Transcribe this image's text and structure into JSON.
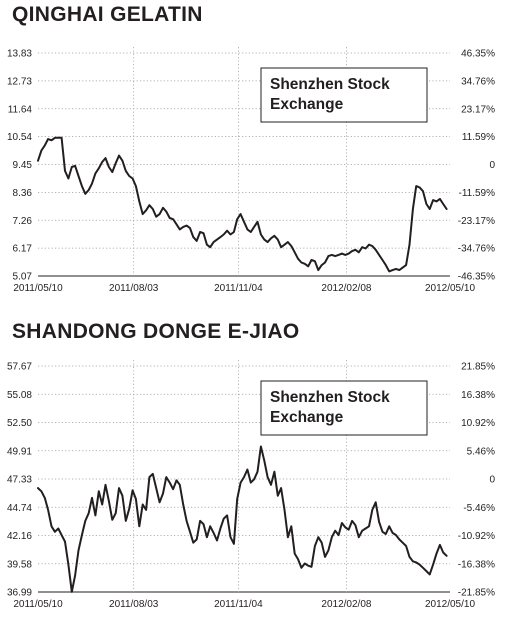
{
  "chart_data": [
    {
      "type": "line",
      "title": "QINGHAI GELATIN",
      "annotation_lines": [
        "Shenzhen Stock",
        "Exchange"
      ],
      "yticks_left": [
        "13.83",
        "12.73",
        "11.64",
        "10.54",
        "9.45",
        "8.36",
        "7.26",
        "6.17",
        "5.07"
      ],
      "yticks_right": [
        "46.35%",
        "34.76%",
        "23.17%",
        "11.59%",
        "0",
        "-11.59%",
        "-23.17%",
        "-34.76%",
        "-46.35%"
      ],
      "ylim": [
        5.07,
        13.83
      ],
      "x_range": [
        "2011/05/10",
        "2012/05/10"
      ],
      "xticks": [
        {
          "label": "2011/05/10",
          "day": 0
        },
        {
          "label": "2011/08/03",
          "day": 85
        },
        {
          "label": "2011/11/04",
          "day": 178
        },
        {
          "label": "2012/02/08",
          "day": 274
        },
        {
          "label": "2012/05/10",
          "day": 366
        }
      ],
      "grid": true,
      "series": [
        {
          "x": [
            0,
            3,
            6,
            9,
            12,
            15,
            18,
            21,
            24,
            27,
            30,
            33,
            36,
            39,
            42,
            45,
            48,
            51,
            54,
            57,
            60,
            63,
            66,
            69,
            72,
            75,
            78,
            81,
            84,
            87,
            90,
            93,
            96,
            99,
            102,
            105,
            108,
            111,
            114,
            117,
            120,
            123,
            126,
            129,
            132,
            135,
            138,
            141,
            144,
            147,
            150,
            153,
            156,
            159,
            162,
            165,
            168,
            171,
            174,
            177,
            180,
            183,
            186,
            189,
            192,
            195,
            198,
            201,
            204,
            207,
            210,
            213,
            216,
            219,
            222,
            225,
            228,
            231,
            234,
            237,
            240,
            243,
            246,
            249,
            252,
            255,
            258,
            261,
            264,
            267,
            270,
            273,
            276,
            279,
            282,
            285,
            288,
            291,
            294,
            297,
            300,
            303,
            306,
            309,
            312,
            315,
            318,
            321,
            324,
            327,
            330,
            333,
            336,
            339,
            342,
            345,
            348,
            351,
            354,
            357,
            360,
            363
          ],
          "y": [
            9.6,
            10.0,
            10.2,
            10.45,
            10.4,
            10.5,
            10.5,
            10.5,
            9.2,
            8.9,
            9.35,
            9.4,
            9.0,
            8.6,
            8.3,
            8.45,
            8.7,
            9.1,
            9.3,
            9.55,
            9.7,
            9.35,
            9.15,
            9.5,
            9.8,
            9.6,
            9.2,
            9.0,
            8.9,
            8.6,
            8.0,
            7.5,
            7.65,
            7.85,
            7.7,
            7.4,
            7.5,
            7.75,
            7.6,
            7.35,
            7.3,
            7.1,
            6.9,
            7.0,
            7.05,
            6.95,
            6.6,
            6.45,
            6.8,
            6.75,
            6.3,
            6.2,
            6.4,
            6.5,
            6.6,
            6.7,
            6.85,
            6.7,
            6.8,
            7.3,
            7.5,
            7.2,
            6.9,
            6.8,
            7.0,
            7.2,
            6.7,
            6.5,
            6.4,
            6.55,
            6.65,
            6.5,
            6.2,
            6.3,
            6.4,
            6.25,
            6.0,
            5.75,
            5.6,
            5.55,
            5.45,
            5.7,
            5.65,
            5.3,
            5.5,
            5.6,
            5.85,
            5.9,
            5.85,
            5.9,
            5.95,
            5.9,
            5.95,
            6.05,
            6.1,
            6.0,
            6.2,
            6.15,
            6.3,
            6.25,
            6.1,
            5.9,
            5.7,
            5.5,
            5.25,
            5.3,
            5.35,
            5.3,
            5.4,
            5.5,
            6.3,
            7.7,
            8.6,
            8.55,
            8.4,
            7.9,
            7.7,
            8.05,
            8.0,
            8.1,
            7.9,
            7.7
          ]
        }
      ]
    },
    {
      "type": "line",
      "title": "SHANDONG DONGE E-JIAO",
      "annotation_lines": [
        "Shenzhen Stock",
        "Exchange"
      ],
      "yticks_left": [
        "57.67",
        "55.08",
        "52.50",
        "49.91",
        "47.33",
        "44.74",
        "42.16",
        "39.58",
        "36.99"
      ],
      "yticks_right": [
        "21.85%",
        "16.38%",
        "10.92%",
        "5.46%",
        "0",
        "-5.46%",
        "-10.92%",
        "-16.38%",
        "-21.85%"
      ],
      "ylim": [
        36.99,
        57.67
      ],
      "x_range": [
        "2011/05/10",
        "2012/05/10"
      ],
      "xticks": [
        {
          "label": "2011/05/10",
          "day": 0
        },
        {
          "label": "2011/08/03",
          "day": 85
        },
        {
          "label": "2011/11/04",
          "day": 178
        },
        {
          "label": "2012/02/08",
          "day": 274
        },
        {
          "label": "2012/05/10",
          "day": 366
        }
      ],
      "grid": true,
      "series": [
        {
          "x": [
            0,
            3,
            6,
            9,
            12,
            15,
            18,
            21,
            24,
            27,
            30,
            33,
            36,
            39,
            42,
            45,
            48,
            51,
            54,
            57,
            60,
            63,
            66,
            69,
            72,
            75,
            78,
            81,
            84,
            87,
            90,
            93,
            96,
            99,
            102,
            105,
            108,
            111,
            114,
            117,
            120,
            123,
            126,
            129,
            132,
            135,
            138,
            141,
            144,
            147,
            150,
            153,
            156,
            159,
            162,
            165,
            168,
            171,
            174,
            177,
            180,
            183,
            186,
            189,
            192,
            195,
            198,
            201,
            204,
            207,
            210,
            213,
            216,
            219,
            222,
            225,
            228,
            231,
            234,
            237,
            240,
            243,
            246,
            249,
            252,
            255,
            258,
            261,
            264,
            267,
            270,
            273,
            276,
            279,
            282,
            285,
            288,
            291,
            294,
            297,
            300,
            303,
            306,
            309,
            312,
            315,
            318,
            321,
            324,
            327,
            330,
            333,
            336,
            339,
            342,
            345,
            348,
            351,
            354,
            357,
            360,
            363
          ],
          "y": [
            46.5,
            46.2,
            45.6,
            44.5,
            43.0,
            42.5,
            42.8,
            42.2,
            41.6,
            39.5,
            37.0,
            38.5,
            40.8,
            42.2,
            43.5,
            44.2,
            45.6,
            44.0,
            46.2,
            45.0,
            46.8,
            45.3,
            43.6,
            44.2,
            46.5,
            45.8,
            43.5,
            44.6,
            46.3,
            45.5,
            43.0,
            45.0,
            44.5,
            47.5,
            47.8,
            46.5,
            45.2,
            46.0,
            47.5,
            47.0,
            46.4,
            47.2,
            46.8,
            45.0,
            43.5,
            42.5,
            41.5,
            41.8,
            43.5,
            43.2,
            42.0,
            43.0,
            42.4,
            41.7,
            42.8,
            43.7,
            44.0,
            42.0,
            41.4,
            45.5,
            47.0,
            47.5,
            48.2,
            47.0,
            47.3,
            48.0,
            50.3,
            49.0,
            47.5,
            46.8,
            48.0,
            45.8,
            46.5,
            44.5,
            42.0,
            43.0,
            40.5,
            40.0,
            39.2,
            39.6,
            39.4,
            39.3,
            41.2,
            42.0,
            41.5,
            40.2,
            40.8,
            42.0,
            42.6,
            42.2,
            43.3,
            42.9,
            42.7,
            43.5,
            43.1,
            42.0,
            42.6,
            42.8,
            43.0,
            44.5,
            45.2,
            43.4,
            42.5,
            42.3,
            43.0,
            42.4,
            42.2,
            41.8,
            41.5,
            41.2,
            40.2,
            39.8,
            39.7,
            39.5,
            39.2,
            38.9,
            38.6,
            39.5,
            40.5,
            41.3,
            40.6,
            40.3
          ]
        }
      ]
    }
  ]
}
